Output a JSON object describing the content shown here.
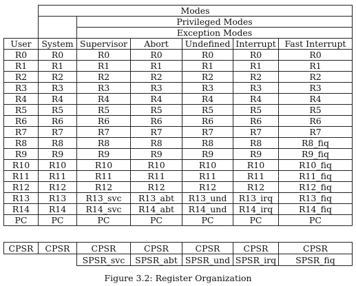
{
  "header": {
    "modes": "Modes",
    "privileged": "Privileged Modes",
    "exception": "Exception Modes"
  },
  "columns": [
    "User",
    "System",
    "Supervisor",
    "Abort",
    "Undefined",
    "Interrupt",
    "Fast Interrupt"
  ],
  "rows": [
    [
      "R0",
      "R0",
      "R0",
      "R0",
      "R0",
      "R0",
      "R0"
    ],
    [
      "R1",
      "R1",
      "R1",
      "R1",
      "R1",
      "R1",
      "R1"
    ],
    [
      "R2",
      "R2",
      "R2",
      "R2",
      "R2",
      "R2",
      "R2"
    ],
    [
      "R3",
      "R3",
      "R3",
      "R3",
      "R3",
      "R3",
      "R3"
    ],
    [
      "R4",
      "R4",
      "R4",
      "R4",
      "R4",
      "R4",
      "R4"
    ],
    [
      "R5",
      "R5",
      "R5",
      "R5",
      "R5",
      "R5",
      "R5"
    ],
    [
      "R6",
      "R6",
      "R6",
      "R6",
      "R6",
      "R6",
      "R6"
    ],
    [
      "R7",
      "R7",
      "R7",
      "R7",
      "R7",
      "R7",
      "R7"
    ],
    [
      "R8",
      "R8",
      "R8",
      "R8",
      "R8",
      "R8",
      "R8_fiq"
    ],
    [
      "R9",
      "R9",
      "R9",
      "R9",
      "R9",
      "R9",
      "R9_fiq"
    ],
    [
      "R10",
      "R10",
      "R10",
      "R10",
      "R10",
      "R10",
      "R10_fiq"
    ],
    [
      "R11",
      "R11",
      "R11",
      "R11",
      "R11",
      "R11",
      "R11_fiq"
    ],
    [
      "R12",
      "R12",
      "R12",
      "R12",
      "R12",
      "R12",
      "R12_fiq"
    ],
    [
      "R13",
      "R13",
      "R13_svc",
      "R13_abt",
      "R13_und",
      "R13_irq",
      "R13_fiq"
    ],
    [
      "R14",
      "R14",
      "R14_svc",
      "R14_abt",
      "R14_und",
      "R14_irq",
      "R14_fiq"
    ],
    [
      "PC",
      "PC",
      "PC",
      "PC",
      "PC",
      "PC",
      "PC"
    ]
  ],
  "status": {
    "cpsr": [
      "CPSR",
      "CPSR",
      "CPSR",
      "CPSR",
      "CPSR",
      "CPSR",
      "CPSR"
    ],
    "spsr": [
      "SPSR_svc",
      "SPSR_abt",
      "SPSR_und",
      "SPSR_irq",
      "SPSR_fiq"
    ]
  },
  "caption": "Figure 3.2: Register Organization"
}
